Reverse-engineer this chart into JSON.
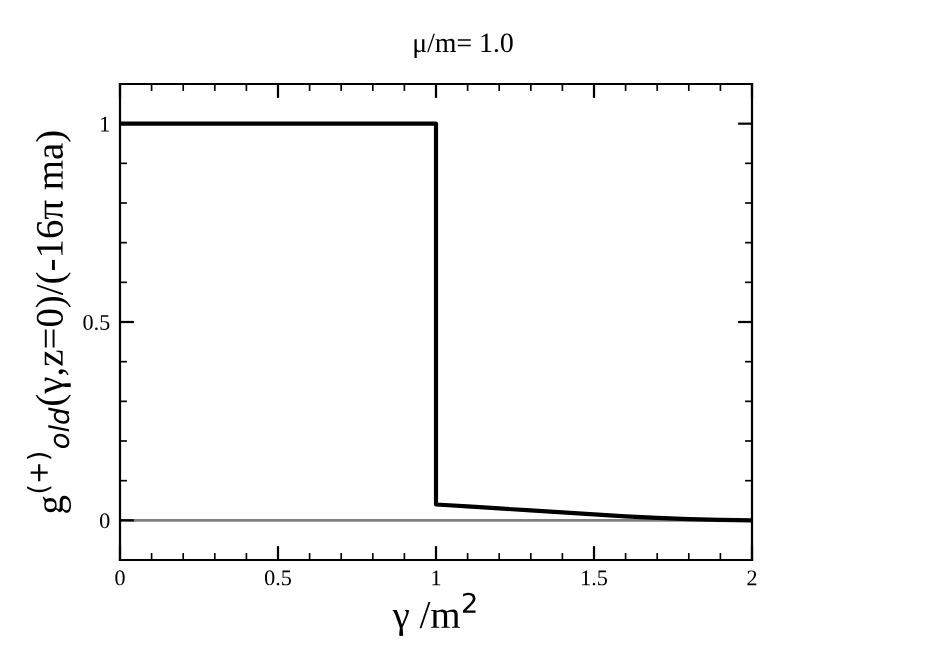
{
  "chart_data": {
    "type": "line",
    "title": "μ/m= 1.0",
    "xlabel": "γ /m$^{2}$",
    "ylabel": "g$^{(+)}$$_{old}$(γ,z=0)/(-16π ma)",
    "x": [
      0,
      1,
      1,
      1.1,
      1.2,
      1.3,
      1.4,
      1.5,
      1.6,
      1.7,
      1.8,
      1.9,
      2
    ],
    "series": [
      {
        "color": "#000000",
        "values": [
          1,
          1,
          0.04,
          0.035,
          0.03,
          0.025,
          0.02,
          0.015,
          0.01,
          0.006,
          0.003,
          0.001,
          0
        ]
      }
    ],
    "xlim": [
      0,
      2
    ],
    "ylim": [
      -0.1,
      1.1
    ],
    "xticks": [
      0,
      0.5,
      1,
      1.5,
      2
    ],
    "yticks": [
      0,
      0.5,
      1
    ],
    "ref_lines": [
      {
        "axis": "y",
        "value": 0,
        "color": "#808080"
      }
    ],
    "grid": false,
    "legend": false,
    "marker": "none",
    "line_style": "solid"
  }
}
